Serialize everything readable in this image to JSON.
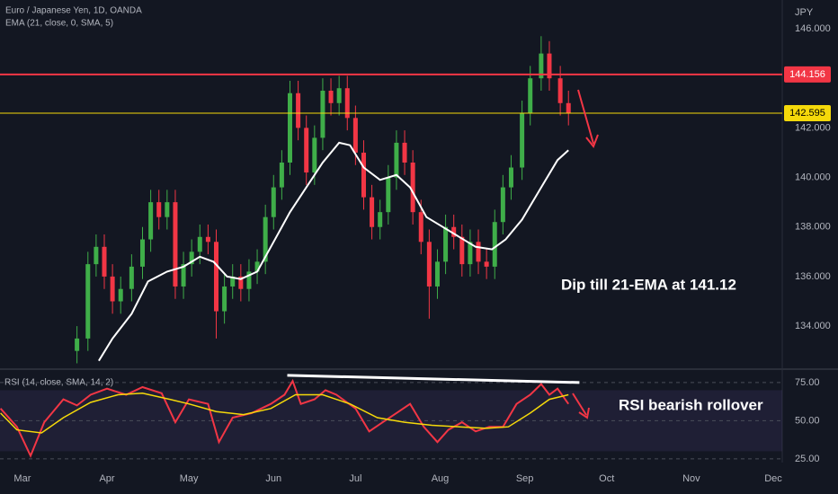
{
  "chart_data": [
    {
      "type": "candlestick",
      "title": "Euro / Japanese Yen, 1D, OANDA",
      "subtitle": "EMA (21, close, 0, SMA, 5)",
      "y_axis_label": "JPY",
      "annotation": "Dip till 21-EMA at 141.12",
      "up_color": "#3fae49",
      "down_color": "#f23645",
      "xlim": [
        -8.2,
        278.3
      ],
      "xticks": [
        {
          "value": 0,
          "label": "Mar"
        },
        {
          "value": 31,
          "label": "Apr"
        },
        {
          "value": 61,
          "label": "May"
        },
        {
          "value": 92,
          "label": "Jun"
        },
        {
          "value": 122,
          "label": "Jul"
        },
        {
          "value": 153,
          "label": "Aug"
        },
        {
          "value": 184,
          "label": "Sep"
        },
        {
          "value": 214,
          "label": "Oct"
        },
        {
          "value": 245,
          "label": "Nov"
        },
        {
          "value": 275,
          "label": "Dec"
        }
      ],
      "ylim": [
        132.3,
        147.16
      ],
      "yticks": [
        {
          "value": 134,
          "label": "134.000"
        },
        {
          "value": 136,
          "label": "136.000"
        },
        {
          "value": 138,
          "label": "138.000"
        },
        {
          "value": 140,
          "label": "140.000"
        },
        {
          "value": 142,
          "label": "142.000"
        },
        {
          "value": 146,
          "label": "146.000"
        }
      ],
      "x": [
        20,
        24,
        27,
        30,
        33,
        36,
        40,
        44,
        47,
        50,
        53,
        56,
        59,
        62,
        65,
        68,
        71,
        74,
        77,
        80,
        83,
        86,
        89,
        92,
        95,
        98,
        101,
        104,
        107,
        110,
        113,
        116,
        119,
        122,
        125,
        128,
        131,
        134,
        137,
        140,
        143,
        146,
        149,
        152,
        155,
        158,
        161,
        164,
        167,
        170,
        173,
        176,
        179,
        183,
        186,
        190,
        193,
        197,
        200
      ],
      "open": [
        133.0,
        133.5,
        136.5,
        137.2,
        136.0,
        135.0,
        135.5,
        136.4,
        137.5,
        139.0,
        138.4,
        139.0,
        135.6,
        136.5,
        137.0,
        137.6,
        137.4,
        134.6,
        135.6,
        136.0,
        135.5,
        136.2,
        136.6,
        138.4,
        139.6,
        140.6,
        143.4,
        142.0,
        140.2,
        141.6,
        143.5,
        143.0,
        143.6,
        142.4,
        141.0,
        139.2,
        138.0,
        138.6,
        140.0,
        141.4,
        140.6,
        138.6,
        137.4,
        135.6,
        136.6,
        138.0,
        137.6,
        136.5,
        137.4,
        136.6,
        136.4,
        138.2,
        139.6,
        140.4,
        142.6,
        144.0,
        145.0,
        144.0,
        143.0
      ],
      "high": [
        134.0,
        137.0,
        137.7,
        137.7,
        136.5,
        136.0,
        136.9,
        138.0,
        139.5,
        139.5,
        139.5,
        139.5,
        137.0,
        137.5,
        138.1,
        138.1,
        137.9,
        136.1,
        136.5,
        136.5,
        136.7,
        137.1,
        138.9,
        140.1,
        141.1,
        143.9,
        143.9,
        142.5,
        142.1,
        144.0,
        144.0,
        144.1,
        144.1,
        142.9,
        141.5,
        139.7,
        139.1,
        140.5,
        141.9,
        141.9,
        141.1,
        139.1,
        137.9,
        137.1,
        138.5,
        138.5,
        138.1,
        137.9,
        137.9,
        137.1,
        138.7,
        140.1,
        140.9,
        143.1,
        144.5,
        145.7,
        145.5,
        144.5,
        143.5
      ],
      "low": [
        132.5,
        133.0,
        136.0,
        135.5,
        134.5,
        134.5,
        135.0,
        135.9,
        137.0,
        137.9,
        137.9,
        135.1,
        135.1,
        136.0,
        136.5,
        136.9,
        133.5,
        134.1,
        135.1,
        135.0,
        135.0,
        135.7,
        136.1,
        137.9,
        139.1,
        140.1,
        141.5,
        139.7,
        139.7,
        141.1,
        142.5,
        142.5,
        141.9,
        140.5,
        138.7,
        137.5,
        137.5,
        138.1,
        139.5,
        140.1,
        138.1,
        136.9,
        134.3,
        135.1,
        136.1,
        137.1,
        136.0,
        136.0,
        136.1,
        135.9,
        135.9,
        137.7,
        139.1,
        139.9,
        142.1,
        143.5,
        143.5,
        142.5,
        142.1
      ],
      "close": [
        133.5,
        136.5,
        137.2,
        136.0,
        135.0,
        135.5,
        136.4,
        137.5,
        139.0,
        138.4,
        139.0,
        135.6,
        136.5,
        137.0,
        137.6,
        137.4,
        134.6,
        135.6,
        136.0,
        135.5,
        136.2,
        136.6,
        138.4,
        139.6,
        140.6,
        143.4,
        142.0,
        140.2,
        141.6,
        143.5,
        143.0,
        143.6,
        142.4,
        141.0,
        139.2,
        138.0,
        138.6,
        140.0,
        141.4,
        140.6,
        138.6,
        137.4,
        135.6,
        136.6,
        138.0,
        137.6,
        136.5,
        137.4,
        136.6,
        136.4,
        138.2,
        139.6,
        140.4,
        142.6,
        144.0,
        145.0,
        144.0,
        143.0,
        142.6
      ],
      "overlay": {
        "color": "#ffffff",
        "x": [
          28,
          33,
          40,
          46,
          53,
          59,
          65,
          70,
          75,
          80,
          86,
          92,
          98,
          104,
          110,
          116,
          120,
          125,
          131,
          137,
          142,
          148,
          154,
          160,
          166,
          172,
          177,
          183,
          190,
          196,
          200
        ],
        "values": [
          132.6,
          133.5,
          134.5,
          135.8,
          136.2,
          136.4,
          136.8,
          136.6,
          136.0,
          135.9,
          136.2,
          137.4,
          138.6,
          139.6,
          140.6,
          141.4,
          141.3,
          140.4,
          139.9,
          140.1,
          139.6,
          138.4,
          138.0,
          137.6,
          137.2,
          137.1,
          137.5,
          138.3,
          139.6,
          140.7,
          141.1
        ]
      },
      "levels": [
        {
          "value": 144.156,
          "color": "#f23645",
          "text_color": "#ffffff"
        },
        {
          "value": 142.595,
          "color": "#f5d90a",
          "text_color": "#000000"
        }
      ]
    },
    {
      "type": "line",
      "title": "RSI (14, close, SMA, 14, 2)",
      "annotation": "RSI bearish rollover",
      "ylim": [
        22.6,
        83.2
      ],
      "yticks": [
        {
          "value": 25,
          "label": "25.00"
        },
        {
          "value": 50,
          "label": "50.00"
        },
        {
          "value": 75,
          "label": "75.00"
        }
      ],
      "grid": true,
      "band": [
        30,
        70
      ],
      "series": [
        {
          "color": "#f23645",
          "x": [
            -8,
            -2,
            3,
            8,
            15,
            20,
            25,
            31,
            38,
            44,
            51,
            56,
            61,
            68,
            72,
            77,
            84,
            91,
            96,
            99,
            102,
            107,
            111,
            115,
            122,
            127,
            132,
            137,
            142,
            147,
            152,
            156,
            161,
            166,
            171,
            176,
            181,
            186,
            190,
            193,
            196,
            200
          ],
          "values": [
            58,
            46,
            27,
            49,
            64,
            60,
            67,
            71,
            67,
            72,
            68,
            49,
            64,
            61,
            36,
            52,
            55,
            61,
            67,
            76,
            61,
            64,
            70,
            67,
            58,
            43,
            49,
            55,
            61,
            46,
            36,
            44,
            49,
            43,
            46,
            46,
            61,
            67,
            74,
            67,
            71,
            61
          ]
        },
        {
          "color": "#f5d90a",
          "x": [
            -8,
            -2,
            7,
            15,
            25,
            35,
            44,
            54,
            61,
            71,
            81,
            91,
            100,
            110,
            120,
            130,
            140,
            150,
            160,
            170,
            178,
            186,
            193,
            200
          ],
          "values": [
            55,
            44,
            42,
            52,
            62,
            67,
            68,
            64,
            61,
            56,
            54,
            58,
            67,
            67,
            61,
            52,
            49,
            47,
            46,
            45,
            46,
            55,
            64,
            67
          ]
        }
      ],
      "trendline": {
        "color": "#ffffff",
        "x": [
          97,
          204
        ],
        "values": [
          79.7,
          75
        ]
      }
    }
  ]
}
